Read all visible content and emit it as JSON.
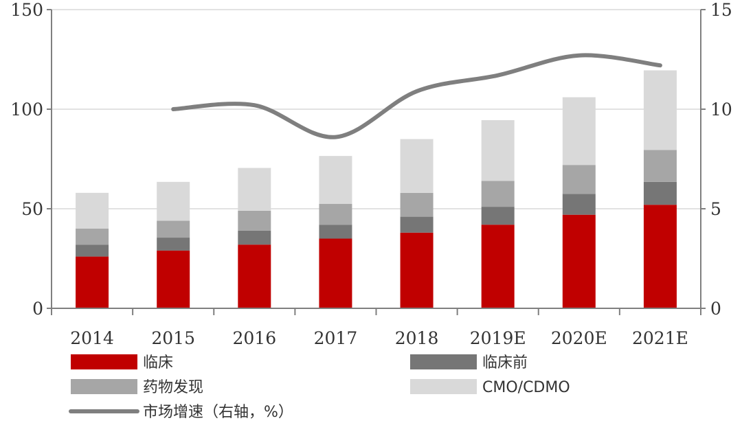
{
  "chart_data": {
    "type": "bar",
    "stacked": true,
    "categories": [
      "2014",
      "2015",
      "2016",
      "2017",
      "2018",
      "2019E",
      "2020E",
      "2021E"
    ],
    "series": [
      {
        "name": "临床",
        "axis": "left",
        "color": "#c00000",
        "values": [
          26,
          29,
          32,
          35,
          38,
          42,
          47,
          52
        ]
      },
      {
        "name": "临床前",
        "axis": "left",
        "color": "#767676",
        "values": [
          6,
          6.5,
          7,
          7,
          8,
          9,
          10.5,
          11.5
        ]
      },
      {
        "name": "药物发现",
        "axis": "left",
        "color": "#a6a6a6",
        "values": [
          8,
          8.5,
          10,
          10.5,
          12,
          13,
          14.5,
          16
        ]
      },
      {
        "name": "CMO/CDMO",
        "axis": "left",
        "color": "#d9d9d9",
        "values": [
          18,
          19.5,
          21.5,
          24,
          27,
          30.5,
          34,
          40
        ]
      }
    ],
    "line_series": {
      "name": "市场增速（右轴，%）",
      "type": "line",
      "axis": "right",
      "color": "#7f7f7f",
      "categories": [
        "2015",
        "2016",
        "2017",
        "2018",
        "2019E",
        "2020E",
        "2021E"
      ],
      "values": [
        10.0,
        10.2,
        8.6,
        10.9,
        11.7,
        12.7,
        12.2
      ]
    },
    "left_axis": {
      "ylim": [
        0,
        150
      ],
      "ticks": [
        "0",
        "50",
        "100",
        "150"
      ]
    },
    "right_axis": {
      "ylim": [
        0,
        15
      ],
      "ticks": [
        "0",
        "5",
        "10",
        "15"
      ]
    },
    "grid": true,
    "legend": {
      "position": "bottom",
      "items": [
        {
          "label": "临床",
          "kind": "bar",
          "color": "#c00000"
        },
        {
          "label": "临床前",
          "kind": "bar",
          "color": "#767676"
        },
        {
          "label": "药物发现",
          "kind": "bar",
          "color": "#a6a6a6"
        },
        {
          "label": "CMO/CDMO",
          "kind": "bar",
          "color": "#d9d9d9"
        },
        {
          "label": "市场增速（右轴，%）",
          "kind": "line",
          "color": "#7f7f7f"
        }
      ]
    }
  }
}
